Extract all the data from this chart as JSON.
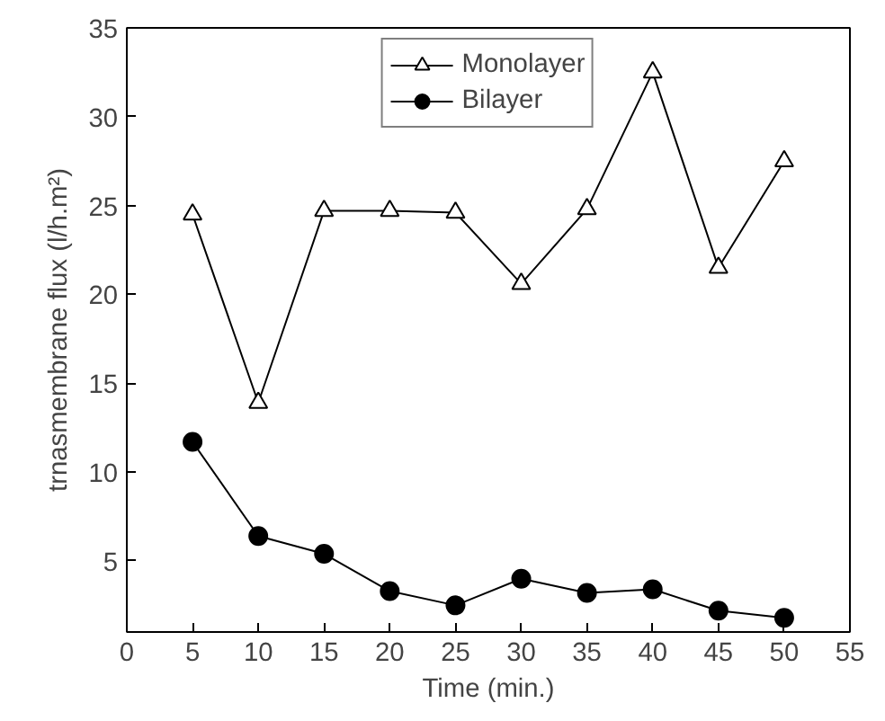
{
  "chart_data": {
    "type": "line",
    "xlabel": "Time (min.)",
    "ylabel": "trnasmembrane flux (l/h.m²)",
    "x": [
      5,
      10,
      15,
      20,
      25,
      30,
      35,
      40,
      45,
      50
    ],
    "series": [
      {
        "name": "Monolayer",
        "color": "#000000",
        "marker": "triangle",
        "values": [
          24.5,
          13.9,
          24.7,
          24.7,
          24.6,
          20.6,
          24.8,
          32.5,
          21.5,
          27.5
        ]
      },
      {
        "name": "Bilayer",
        "color": "#000000",
        "marker": "circle",
        "values": [
          11.7,
          6.4,
          5.4,
          3.3,
          2.5,
          4.0,
          3.2,
          3.4,
          2.2,
          1.8
        ]
      }
    ],
    "xlim": [
      0,
      55
    ],
    "xticks": [
      0,
      5,
      10,
      15,
      20,
      25,
      30,
      35,
      40,
      45,
      50,
      55
    ],
    "ylim": [
      1,
      35
    ],
    "yticks": [
      5,
      10,
      15,
      20,
      25,
      30,
      35
    ],
    "grid": false,
    "legend": "top",
    "line_style": "solid"
  }
}
